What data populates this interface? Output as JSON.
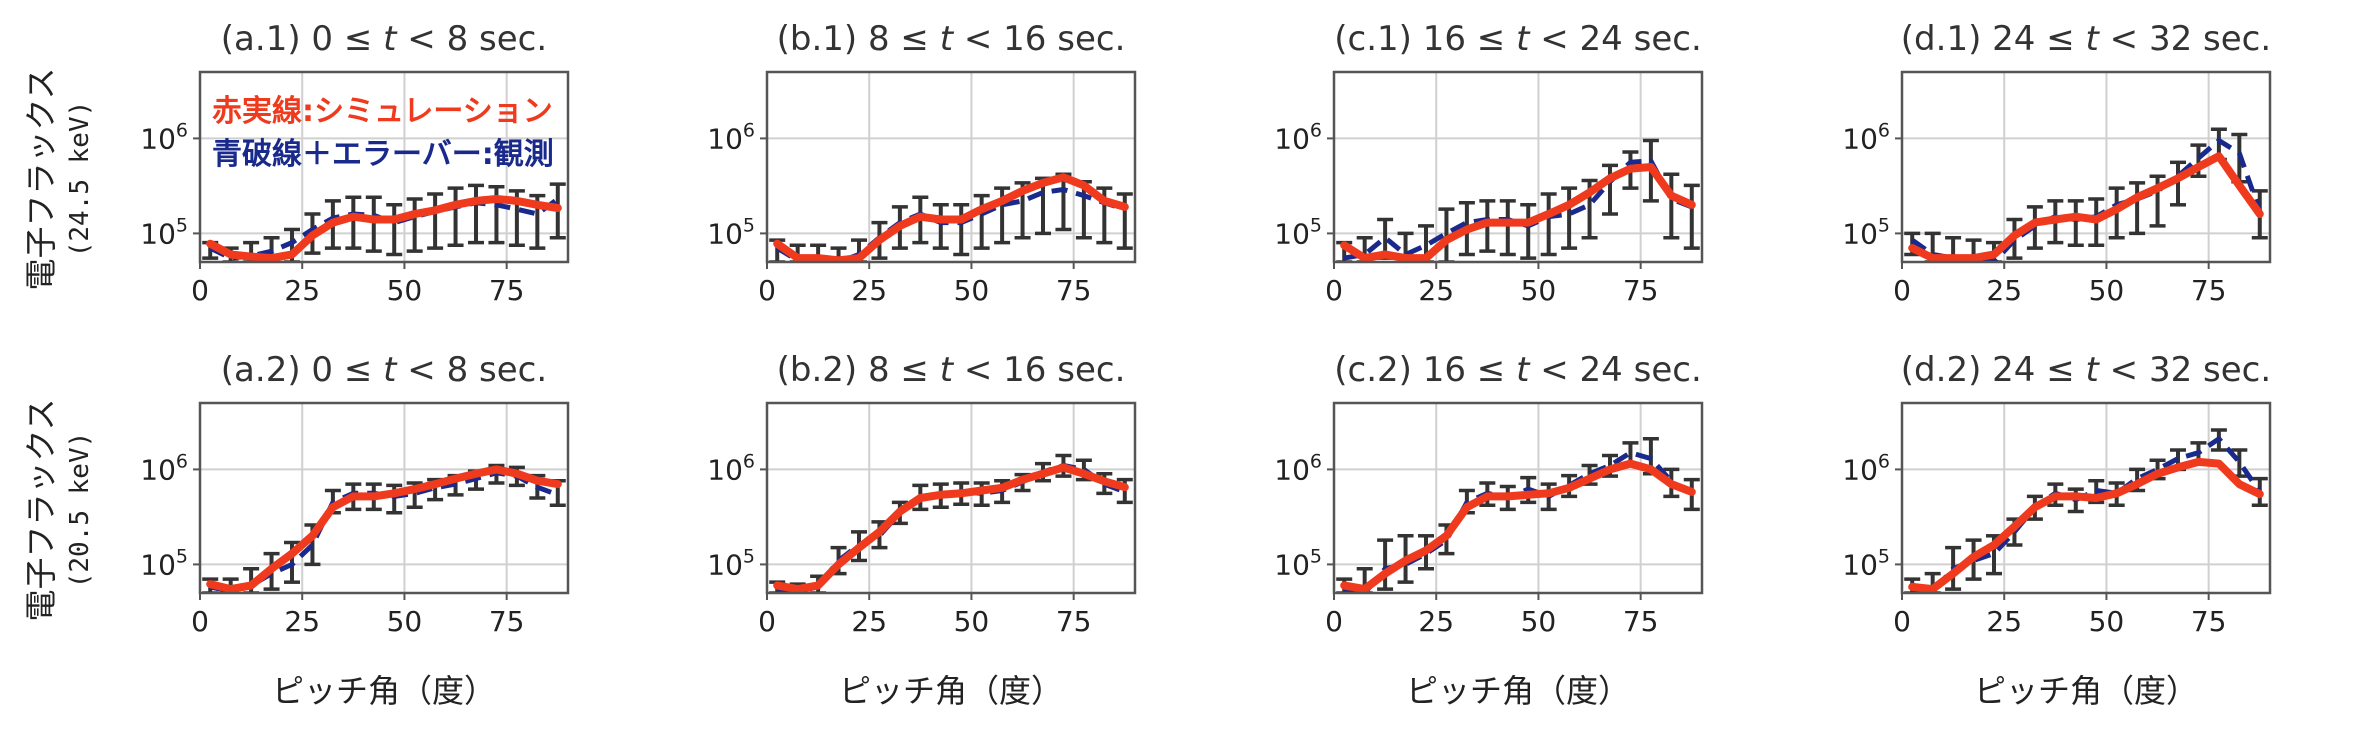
{
  "chart_data": {
    "type": "line",
    "legend": {
      "simulation": "赤実線:シミュレーション",
      "observation": "青破線＋エラーバー:観測"
    },
    "xlabel": "ピッチ角（度）",
    "row_labels": [
      {
        "main": "電子フラックス",
        "sub": "(24.5 keV)"
      },
      {
        "main": "電子フラックス",
        "sub": "(20.5 keV)"
      }
    ],
    "x_range": [
      0,
      90
    ],
    "x_ticks": [
      0,
      25,
      50,
      75
    ],
    "y_scale": "log",
    "y_range": [
      50000,
      5000000
    ],
    "y_ticks": [
      {
        "value": 100000,
        "base": "10",
        "exp": "5"
      },
      {
        "value": 1000000,
        "base": "10",
        "exp": "6"
      }
    ],
    "grid": true,
    "colors": {
      "simulation": "#f03a1e",
      "observation": "#1a2a8c",
      "error_bar": "#333333"
    },
    "x": [
      2.5,
      7.5,
      12.5,
      17.5,
      22.5,
      27.5,
      32.5,
      37.5,
      42.5,
      47.5,
      52.5,
      57.5,
      62.5,
      67.5,
      72.5,
      77.5,
      82.5,
      87.5
    ],
    "panels": [
      {
        "title": "(a.1) 0 ≤ t < 8 sec.",
        "title_prefix": "(a.1) 0 ≤ ",
        "title_suffix": " < 8 sec.",
        "sim": [
          78000,
          60000,
          57000,
          55000,
          60000,
          95000,
          130000,
          150000,
          140000,
          140000,
          160000,
          175000,
          200000,
          220000,
          230000,
          220000,
          200000,
          185000
        ],
        "obs": [
          70000,
          55000,
          58000,
          65000,
          80000,
          110000,
          145000,
          160000,
          155000,
          130000,
          150000,
          170000,
          190000,
          210000,
          200000,
          180000,
          160000,
          230000
        ],
        "obs_low": [
          55000,
          42000,
          38000,
          38000,
          45000,
          62000,
          70000,
          70000,
          65000,
          60000,
          65000,
          70000,
          75000,
          80000,
          80000,
          75000,
          70000,
          90000
        ],
        "obs_high": [
          80000,
          70000,
          80000,
          90000,
          110000,
          160000,
          220000,
          240000,
          240000,
          200000,
          230000,
          260000,
          300000,
          320000,
          310000,
          280000,
          250000,
          330000
        ]
      },
      {
        "title": "(b.1) 8 ≤ t < 16 sec.",
        "title_prefix": "(b.1) 8 ≤ ",
        "title_suffix": " < 16 sec.",
        "sim": [
          78000,
          55000,
          55000,
          52000,
          55000,
          85000,
          120000,
          150000,
          140000,
          140000,
          180000,
          220000,
          280000,
          340000,
          390000,
          320000,
          220000,
          190000
        ],
        "obs": [
          70000,
          52000,
          55000,
          50000,
          60000,
          90000,
          130000,
          160000,
          130000,
          130000,
          160000,
          200000,
          220000,
          270000,
          290000,
          250000,
          210000,
          180000
        ],
        "obs_low": [
          50000,
          40000,
          38000,
          38000,
          42000,
          55000,
          70000,
          80000,
          70000,
          60000,
          70000,
          80000,
          90000,
          100000,
          110000,
          90000,
          80000,
          70000
        ],
        "obs_high": [
          85000,
          75000,
          75000,
          70000,
          85000,
          130000,
          190000,
          240000,
          200000,
          200000,
          250000,
          300000,
          340000,
          380000,
          420000,
          350000,
          300000,
          260000
        ]
      },
      {
        "title": "(c.1) 16 ≤ t < 24 sec.",
        "title_prefix": "(c.1) 16 ≤ ",
        "title_suffix": " < 24 sec.",
        "sim": [
          75000,
          55000,
          60000,
          55000,
          55000,
          85000,
          110000,
          130000,
          130000,
          130000,
          160000,
          200000,
          270000,
          380000,
          480000,
          500000,
          250000,
          200000
        ],
        "obs": [
          55000,
          60000,
          90000,
          60000,
          75000,
          100000,
          130000,
          140000,
          140000,
          120000,
          150000,
          160000,
          200000,
          350000,
          560000,
          580000,
          230000,
          190000
        ],
        "obs_low": [
          40000,
          40000,
          55000,
          40000,
          40000,
          50000,
          60000,
          65000,
          60000,
          55000,
          60000,
          70000,
          90000,
          160000,
          300000,
          220000,
          90000,
          70000
        ],
        "obs_high": [
          80000,
          90000,
          140000,
          100000,
          120000,
          180000,
          210000,
          220000,
          220000,
          200000,
          260000,
          300000,
          360000,
          520000,
          720000,
          950000,
          420000,
          320000
        ]
      },
      {
        "title": "(d.1) 24 ≤ t < 32 sec.",
        "title_prefix": "(d.1) 24 ≤ ",
        "title_suffix": " < 32 sec.",
        "sim": [
          70000,
          55000,
          55000,
          55000,
          60000,
          95000,
          130000,
          140000,
          150000,
          140000,
          180000,
          240000,
          300000,
          380000,
          500000,
          650000,
          320000,
          160000
        ],
        "obs": [
          85000,
          60000,
          55000,
          55000,
          50000,
          85000,
          120000,
          150000,
          140000,
          150000,
          200000,
          230000,
          280000,
          400000,
          620000,
          950000,
          700000,
          170000
        ],
        "obs_low": [
          60000,
          40000,
          38000,
          38000,
          38000,
          55000,
          70000,
          80000,
          75000,
          75000,
          90000,
          100000,
          120000,
          200000,
          400000,
          600000,
          350000,
          90000
        ],
        "obs_high": [
          100000,
          100000,
          90000,
          85000,
          80000,
          140000,
          190000,
          220000,
          220000,
          230000,
          300000,
          340000,
          400000,
          560000,
          850000,
          1250000,
          1100000,
          280000
        ]
      },
      {
        "title": "(a.2) 0 ≤ t < 8 sec.",
        "title_prefix": "(a.2) 0 ≤ ",
        "title_suffix": " < 8 sec.",
        "sim": [
          62000,
          55000,
          60000,
          90000,
          130000,
          200000,
          400000,
          520000,
          520000,
          560000,
          620000,
          700000,
          800000,
          900000,
          1000000,
          900000,
          760000,
          700000
        ],
        "obs": [
          58000,
          52000,
          60000,
          80000,
          100000,
          160000,
          450000,
          560000,
          560000,
          520000,
          560000,
          640000,
          700000,
          800000,
          920000,
          850000,
          650000,
          540000
        ],
        "obs_low": [
          50000,
          45000,
          45000,
          55000,
          65000,
          100000,
          350000,
          380000,
          380000,
          350000,
          400000,
          480000,
          540000,
          620000,
          720000,
          680000,
          500000,
          420000
        ],
        "obs_high": [
          70000,
          70000,
          90000,
          130000,
          170000,
          260000,
          600000,
          700000,
          700000,
          680000,
          720000,
          780000,
          860000,
          960000,
          1100000,
          1050000,
          860000,
          760000
        ]
      },
      {
        "title": "(b.2) 8 ≤ t < 16 sec.",
        "title_prefix": "(b.2) 8 ≤ ",
        "title_suffix": " < 16 sec.",
        "sim": [
          60000,
          55000,
          60000,
          100000,
          150000,
          220000,
          360000,
          500000,
          540000,
          560000,
          600000,
          640000,
          780000,
          900000,
          1050000,
          900000,
          750000,
          650000
        ],
        "obs": [
          55000,
          52000,
          58000,
          110000,
          160000,
          200000,
          350000,
          520000,
          540000,
          580000,
          560000,
          600000,
          740000,
          940000,
          1100000,
          1000000,
          700000,
          580000
        ],
        "obs_low": [
          48000,
          45000,
          48000,
          80000,
          110000,
          150000,
          270000,
          380000,
          400000,
          430000,
          420000,
          450000,
          600000,
          760000,
          850000,
          780000,
          560000,
          450000
        ],
        "obs_high": [
          65000,
          62000,
          75000,
          150000,
          220000,
          280000,
          450000,
          680000,
          700000,
          720000,
          720000,
          760000,
          880000,
          1150000,
          1400000,
          1250000,
          900000,
          780000
        ]
      },
      {
        "title": "(c.2) 16 ≤ t < 24 sec.",
        "title_prefix": "(c.2) 16 ≤ ",
        "title_suffix": " < 24 sec.",
        "sim": [
          60000,
          55000,
          80000,
          110000,
          140000,
          200000,
          400000,
          520000,
          520000,
          540000,
          560000,
          640000,
          800000,
          1000000,
          1150000,
          1000000,
          700000,
          580000
        ],
        "obs": [
          55000,
          50000,
          90000,
          100000,
          130000,
          180000,
          450000,
          560000,
          500000,
          620000,
          520000,
          680000,
          900000,
          1100000,
          1500000,
          1300000,
          750000,
          540000
        ],
        "obs_low": [
          45000,
          38000,
          55000,
          65000,
          90000,
          130000,
          350000,
          420000,
          380000,
          450000,
          380000,
          520000,
          700000,
          850000,
          1150000,
          900000,
          520000,
          380000
        ],
        "obs_high": [
          70000,
          90000,
          180000,
          200000,
          200000,
          260000,
          600000,
          720000,
          660000,
          820000,
          700000,
          860000,
          1100000,
          1400000,
          1900000,
          2100000,
          1000000,
          780000
        ]
      },
      {
        "title": "(d.2) 24 ≤ t < 32 sec.",
        "title_prefix": "(d.2) 24 ≤ ",
        "title_suffix": " < 32 sec.",
        "sim": [
          58000,
          55000,
          80000,
          120000,
          160000,
          250000,
          400000,
          520000,
          520000,
          500000,
          560000,
          700000,
          900000,
          1050000,
          1200000,
          1150000,
          700000,
          550000
        ],
        "obs": [
          55000,
          52000,
          90000,
          110000,
          130000,
          220000,
          400000,
          560000,
          480000,
          600000,
          560000,
          800000,
          1000000,
          1300000,
          1500000,
          2100000,
          1200000,
          580000
        ],
        "obs_low": [
          45000,
          40000,
          55000,
          70000,
          80000,
          160000,
          300000,
          420000,
          360000,
          450000,
          420000,
          600000,
          800000,
          1000000,
          1150000,
          1600000,
          850000,
          420000
        ],
        "obs_high": [
          70000,
          80000,
          150000,
          180000,
          200000,
          300000,
          520000,
          700000,
          620000,
          760000,
          720000,
          1000000,
          1250000,
          1600000,
          1900000,
          2600000,
          1600000,
          800000
        ]
      }
    ]
  }
}
